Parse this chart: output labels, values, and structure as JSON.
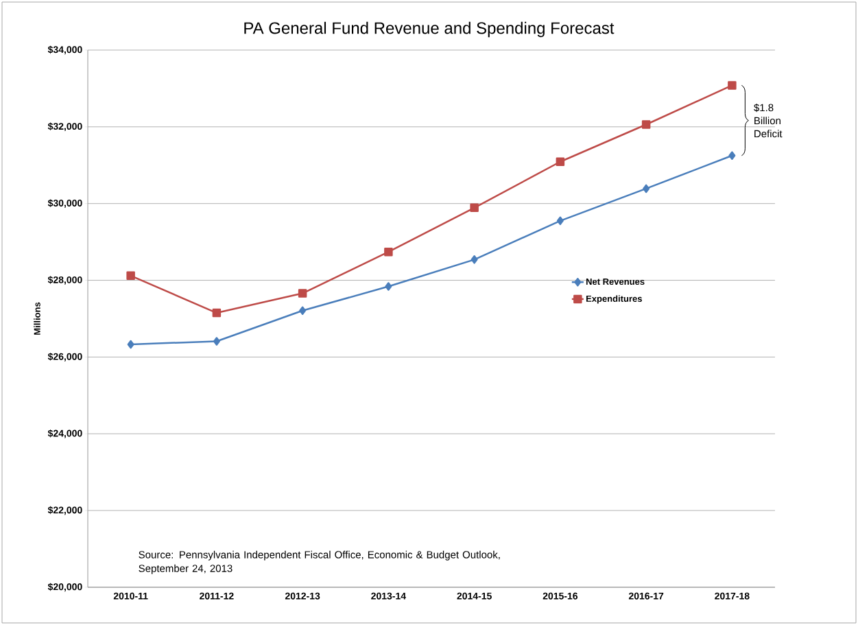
{
  "chart_data": {
    "type": "line",
    "title": "PA General Fund Revenue and Spending Forecast",
    "ylabel": "Millions",
    "categories": [
      "2010-11",
      "2011-12",
      "2012-13",
      "2013-14",
      "2014-15",
      "2015-16",
      "2016-17",
      "2017-18"
    ],
    "series": [
      {
        "name": "Net Revenues",
        "color": "#4a7ebb",
        "marker": "diamond",
        "values": [
          26330,
          26410,
          27210,
          27840,
          28540,
          29550,
          30390,
          31250
        ]
      },
      {
        "name": "Expenditures",
        "color": "#be4b48",
        "marker": "square",
        "values": [
          28120,
          27150,
          27660,
          28740,
          29890,
          31090,
          32060,
          33080
        ]
      }
    ],
    "ylim": [
      20000,
      34000
    ],
    "yticks": [
      {
        "value": 20000,
        "label": "$20,000"
      },
      {
        "value": 22000,
        "label": "$22,000"
      },
      {
        "value": 24000,
        "label": "$24,000"
      },
      {
        "value": 26000,
        "label": "$26,000"
      },
      {
        "value": 28000,
        "label": "$28,000"
      },
      {
        "value": 30000,
        "label": "$30,000"
      },
      {
        "value": 32000,
        "label": "$32,000"
      },
      {
        "value": 34000,
        "label": "$34,000"
      }
    ],
    "grid": "y",
    "legend": "right",
    "line_style": "solid",
    "annotations": [
      "$1.8 Billion Deficit",
      "Source: Pennsylvania Independent Fiscal Office, Economic & Budget Outlook, September 24, 2013"
    ]
  }
}
